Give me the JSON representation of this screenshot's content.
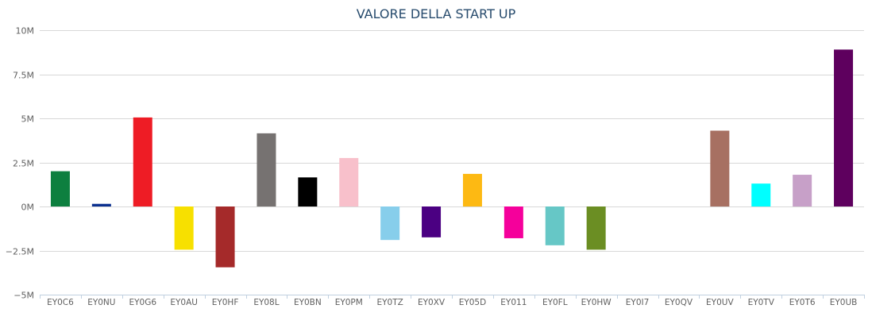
{
  "chart_data": {
    "type": "bar",
    "title": "VALORE DELLA START UP",
    "xlabel": "",
    "ylabel": "",
    "ylim": [
      -5000000,
      10000000
    ],
    "yticks": [
      {
        "value": 10000000,
        "label": "10M"
      },
      {
        "value": 7500000,
        "label": "7.5M"
      },
      {
        "value": 5000000,
        "label": "5M"
      },
      {
        "value": 2500000,
        "label": "2.5M"
      },
      {
        "value": 0,
        "label": "0M"
      },
      {
        "value": -2500000,
        "label": "−2.5M"
      },
      {
        "value": -5000000,
        "label": "−5M"
      }
    ],
    "grid": true,
    "legend": "none",
    "categories": [
      "EY0C6",
      "EY0NU",
      "EY0G6",
      "EY0AU",
      "EY0HF",
      "EY08L",
      "EY0BN",
      "EY0PM",
      "EY0TZ",
      "EY0XV",
      "EY05D",
      "EY011",
      "EY0FL",
      "EY0HW",
      "EY0I7",
      "EY0QV",
      "EY0UV",
      "EY0TV",
      "EY0T6",
      "EY0UB"
    ],
    "values": [
      2000000,
      150000,
      5050000,
      -2450000,
      -3450000,
      4150000,
      1650000,
      2750000,
      -1900000,
      -1750000,
      1850000,
      -1800000,
      -2200000,
      -2450000,
      0,
      0,
      4300000,
      1300000,
      1800000,
      8900000
    ],
    "colors": [
      "#0d7f3f",
      "#0a2f8f",
      "#ee1c25",
      "#f7e000",
      "#a52a2a",
      "#767271",
      "#000000",
      "#f8c0cb",
      "#87ceeb",
      "#4b0082",
      "#fdb913",
      "#f5009b",
      "#66c7c6",
      "#6b8e23",
      "#ffffff",
      "#ffffff",
      "#a77062",
      "#00ffff",
      "#c7a0c8",
      "#5e005e"
    ]
  }
}
